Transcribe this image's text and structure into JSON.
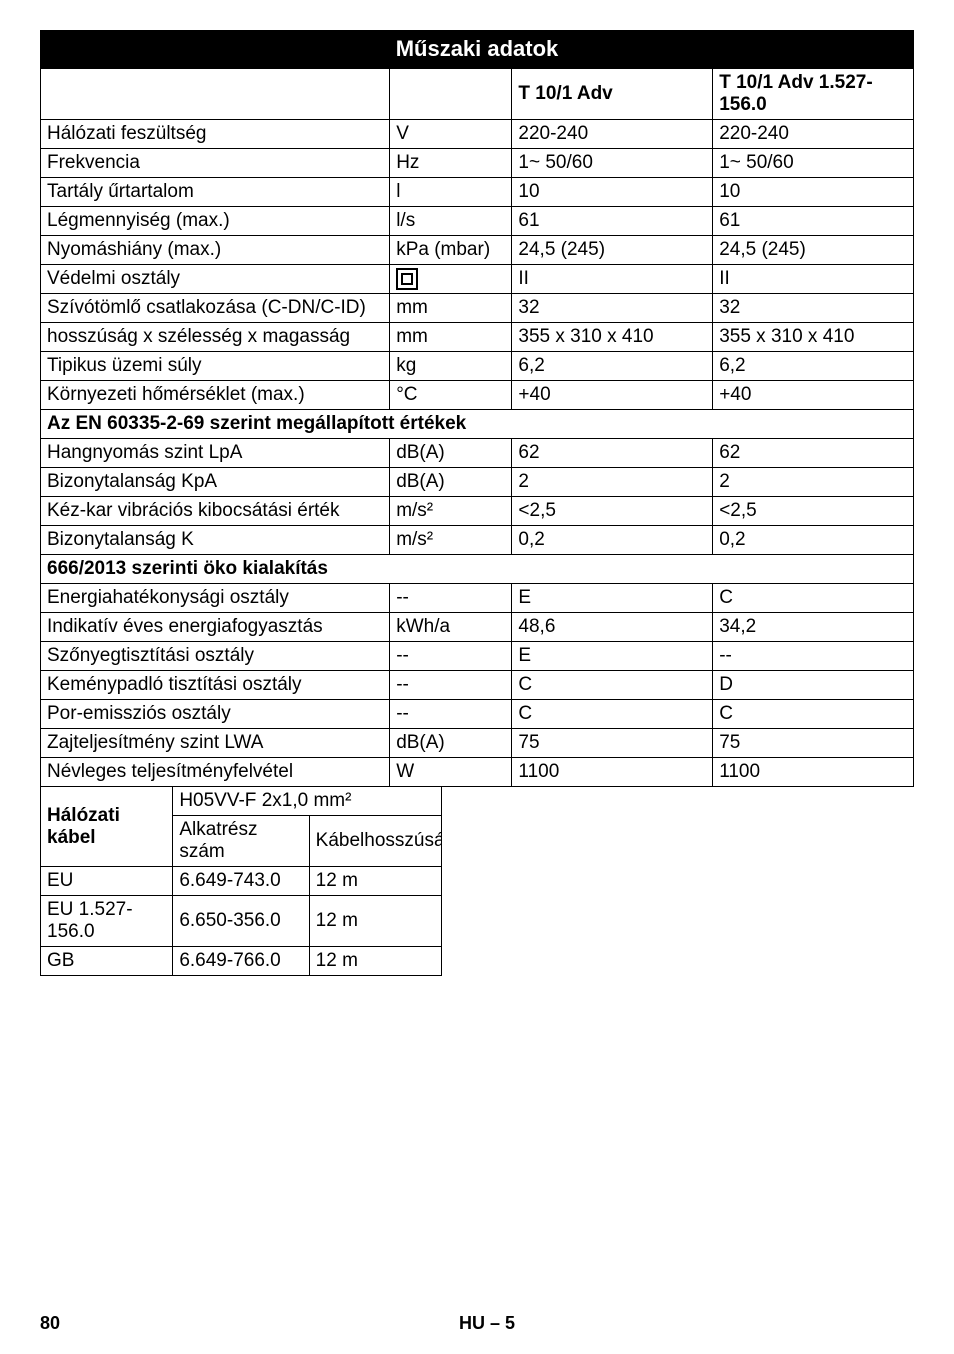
{
  "title": "Műszaki adatok",
  "columns": {
    "v1": "T 10/1 Adv",
    "v2": "T 10/1 Adv 1.527-156.0"
  },
  "rows": [
    {
      "label": "Hálózati feszültség",
      "unit": "V",
      "v1": "220-240",
      "v2": "220-240"
    },
    {
      "label": "Frekvencia",
      "unit": "Hz",
      "v1": "1~ 50/60",
      "v2": "1~ 50/60"
    },
    {
      "label": "Tartály űrtartalom",
      "unit": "l",
      "v1": "10",
      "v2": "10"
    },
    {
      "label": "Légmennyiség (max.)",
      "unit": "l/s",
      "v1": "61",
      "v2": "61"
    },
    {
      "label": "Nyomáshiány (max.)",
      "unit": "kPa (mbar)",
      "v1": "24,5 (245)",
      "v2": "24,5 (245)"
    },
    {
      "label": "Védelmi osztály",
      "unit": "__ICON__",
      "v1": "II",
      "v2": "II"
    },
    {
      "label": "Szívótömlő csatlakozása (C-DN/C-ID)",
      "unit": "mm",
      "v1": "32",
      "v2": "32"
    },
    {
      "label": "hosszúság x szélesség x magasság",
      "unit": "mm",
      "v1": "355 x 310 x 410",
      "v2": "355 x 310 x 410"
    },
    {
      "label": "Tipikus üzemi súly",
      "unit": "kg",
      "v1": "6,2",
      "v2": "6,2"
    },
    {
      "label": "Környezeti hőmérséklet (max.)",
      "unit": "°C",
      "v1": "+40",
      "v2": "+40"
    }
  ],
  "section1": "Az EN 60335-2-69 szerint megállapított értékek",
  "rows2": [
    {
      "label": "Hangnyomás szint LpA",
      "unit": "dB(A)",
      "v1": "62",
      "v2": "62"
    },
    {
      "label": "Bizonytalanság KpA",
      "unit": "dB(A)",
      "v1": "2",
      "v2": "2"
    },
    {
      "label": "Kéz-kar vibrációs kibocsátási érték",
      "unit": "m/s²",
      "v1": "<2,5",
      "v2": "<2,5"
    },
    {
      "label": "Bizonytalanság K",
      "unit": "m/s²",
      "v1": "0,2",
      "v2": "0,2"
    }
  ],
  "section2": "666/2013 szerinti öko kialakítás",
  "rows3": [
    {
      "label": "Energiahatékonysági osztály",
      "unit": "--",
      "v1": "E",
      "v2": "C"
    },
    {
      "label": "Indikatív éves energiafogyasztás",
      "unit": "kWh/a",
      "v1": "48,6",
      "v2": "34,2"
    },
    {
      "label": "Szőnyegtisztítási osztály",
      "unit": "--",
      "v1": "E",
      "v2": "--"
    },
    {
      "label": "Keménypadló tisztítási osztály",
      "unit": "--",
      "v1": "C",
      "v2": "D"
    },
    {
      "label": "Por-emissziós osztály",
      "unit": "--",
      "v1": "C",
      "v2": "C"
    },
    {
      "label": "Zajteljesítmény szint LWA",
      "unit": "dB(A)",
      "v1": "75",
      "v2": "75"
    },
    {
      "label": "Névleges teljesítményfelvétel",
      "unit": "W",
      "v1": "1100",
      "v2": "1100"
    }
  ],
  "cable": {
    "header_left": "Hálózati kábel",
    "header_spec": "H05VV-F 2x1,0 mm²",
    "sub_left": "Alkatrész szám",
    "sub_right": "Kábelhosszúság",
    "rows": [
      {
        "region": "EU",
        "part": "6.649-743.0",
        "len": "12 m"
      },
      {
        "region": "EU 1.527-156.0",
        "part": "6.650-356.0",
        "len": "12 m"
      },
      {
        "region": "GB",
        "part": "6.649-766.0",
        "len": "12 m"
      }
    ]
  },
  "footer": {
    "page": "80",
    "section": "HU – 5"
  }
}
